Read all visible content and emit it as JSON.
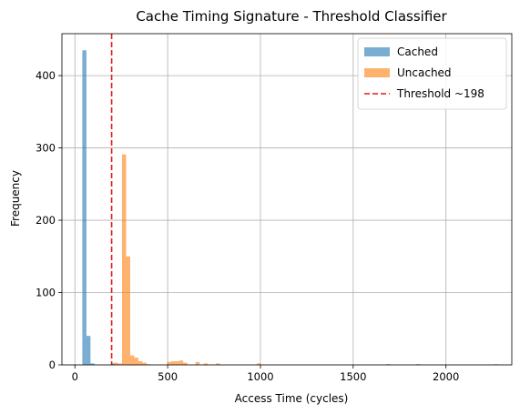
{
  "chart_data": {
    "type": "bar",
    "title": "Cache Timing Signature - Threshold Classifier",
    "xlabel": "Access Time (cycles)",
    "ylabel": "Frequency",
    "xlim": [
      -70,
      2355
    ],
    "ylim": [
      0,
      458
    ],
    "xticks": [
      0,
      500,
      1000,
      1500,
      2000
    ],
    "yticks": [
      0,
      100,
      200,
      300,
      400
    ],
    "grid": true,
    "legend_position": "top-right",
    "threshold": {
      "name": "Threshold ~198",
      "value": 198,
      "color": "#e41a1c"
    },
    "series": [
      {
        "name": "Cached",
        "color": "#1f77b4",
        "opacity": 0.6,
        "bin_width": 22,
        "bins": [
          {
            "x0": 40,
            "count": 435
          },
          {
            "x0": 62,
            "count": 40
          },
          {
            "x0": 84,
            "count": 2
          },
          {
            "x0": 194,
            "count": 2
          },
          {
            "x0": 1680,
            "count": 1
          },
          {
            "x0": 1840,
            "count": 1
          }
        ]
      },
      {
        "name": "Uncached",
        "color": "#ff7f0e",
        "opacity": 0.6,
        "bin_width": 22,
        "bins": [
          {
            "x0": 210,
            "count": 3
          },
          {
            "x0": 232,
            "count": 2
          },
          {
            "x0": 254,
            "count": 291
          },
          {
            "x0": 276,
            "count": 150
          },
          {
            "x0": 298,
            "count": 13
          },
          {
            "x0": 320,
            "count": 10
          },
          {
            "x0": 342,
            "count": 5
          },
          {
            "x0": 364,
            "count": 3
          },
          {
            "x0": 386,
            "count": 1
          },
          {
            "x0": 496,
            "count": 4
          },
          {
            "x0": 518,
            "count": 5
          },
          {
            "x0": 540,
            "count": 5
          },
          {
            "x0": 562,
            "count": 6
          },
          {
            "x0": 584,
            "count": 3
          },
          {
            "x0": 650,
            "count": 4
          },
          {
            "x0": 694,
            "count": 2
          },
          {
            "x0": 760,
            "count": 2
          },
          {
            "x0": 980,
            "count": 2
          },
          {
            "x0": 2260,
            "count": 1
          }
        ]
      }
    ]
  }
}
